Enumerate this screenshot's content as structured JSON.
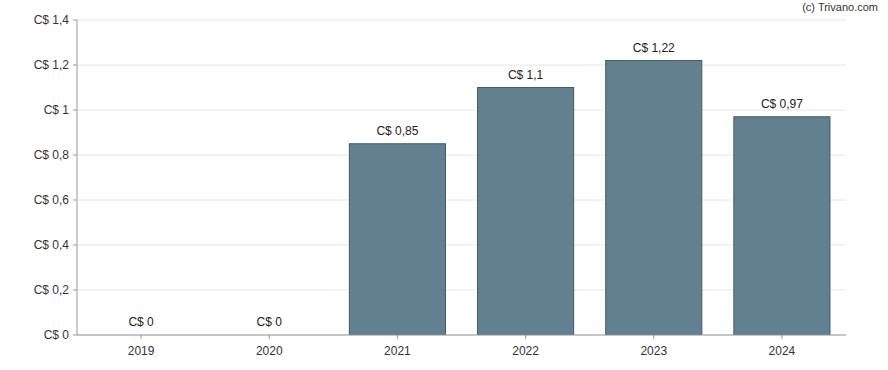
{
  "chart_data": {
    "type": "bar",
    "annotation": "(c) Trivano.com",
    "categories": [
      "2019",
      "2020",
      "2021",
      "2022",
      "2023",
      "2024"
    ],
    "values": [
      0,
      0,
      0.85,
      1.1,
      1.22,
      0.97
    ],
    "value_labels": [
      "C$ 0",
      "C$ 0",
      "C$ 0,85",
      "C$ 1,1",
      "C$ 1,22",
      "C$ 0,97"
    ],
    "data_labels": true,
    "color": "#62808f",
    "ylim": [
      0,
      1.4
    ],
    "yticks": [
      {
        "value": 0,
        "label": "C$ 0"
      },
      {
        "value": 0.2,
        "label": "C$ 0,2"
      },
      {
        "value": 0.4,
        "label": "C$ 0,4"
      },
      {
        "value": 0.6,
        "label": "C$ 0,6"
      },
      {
        "value": 0.8,
        "label": "C$ 0,8"
      },
      {
        "value": 1,
        "label": "C$ 1"
      },
      {
        "value": 1.2,
        "label": "C$ 1,2"
      },
      {
        "value": 1.4,
        "label": "C$ 1,4"
      }
    ],
    "grid": true
  }
}
